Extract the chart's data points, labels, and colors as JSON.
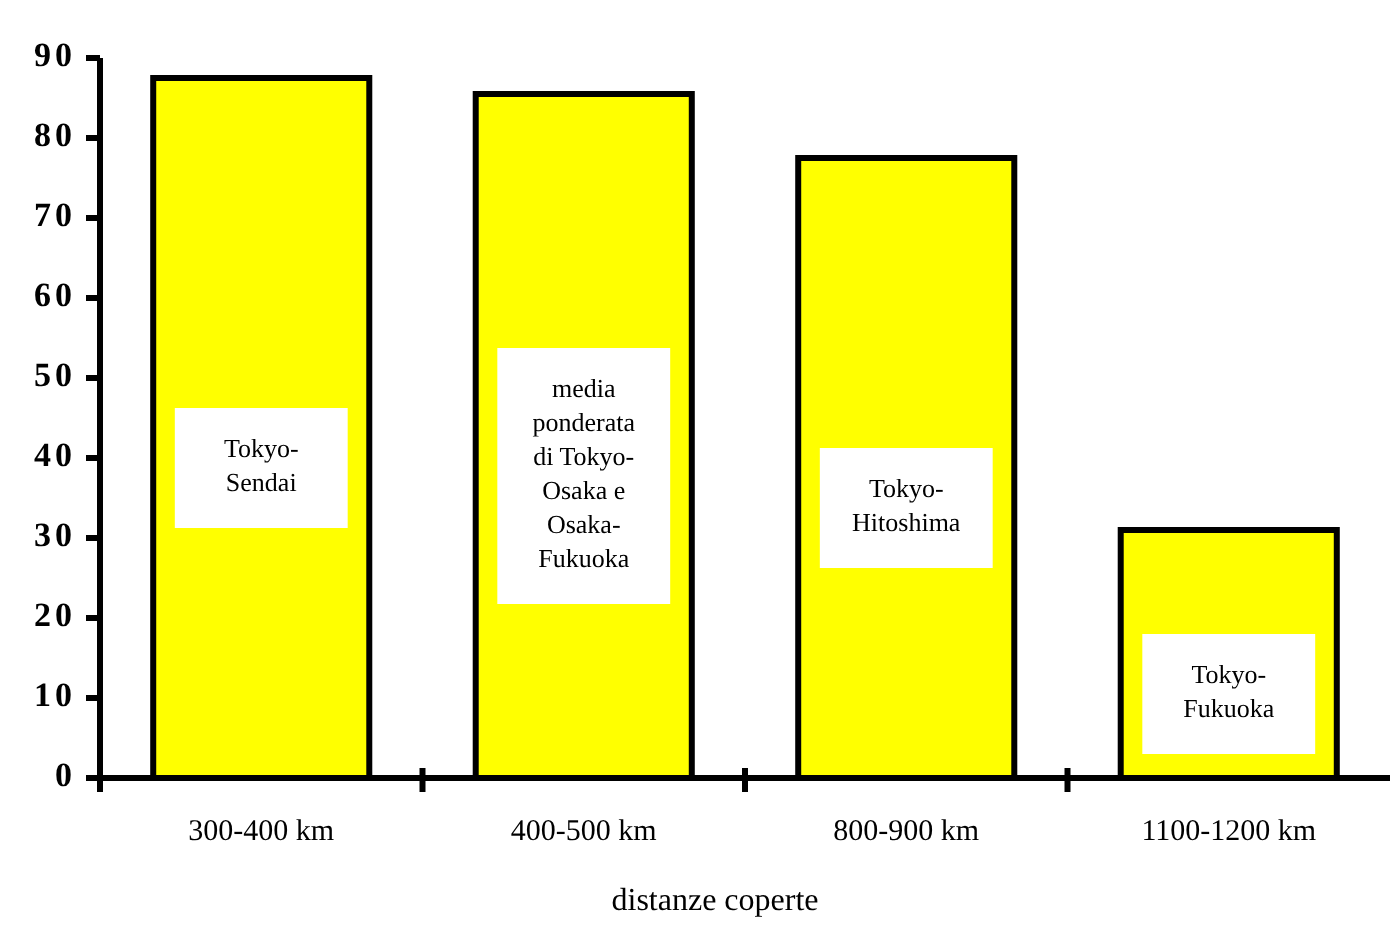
{
  "chart_data": {
    "type": "bar",
    "xlabel": "distanze coperte",
    "categories": [
      "300-400 km",
      "400-500 km",
      "800-900 km",
      "1100-1200 km"
    ],
    "values": [
      87.5,
      85.5,
      77.5,
      31
    ],
    "color": "#ffff00",
    "ylim": [
      0,
      90
    ],
    "yticks": [
      0,
      10,
      20,
      30,
      40,
      50,
      60,
      70,
      80,
      90
    ],
    "grid": false,
    "annotations": [
      "Tokyo-Sendai",
      "media ponderata di Tokyo-Osaka e Osaka-Fukuoka",
      "Tokyo-Hitoshima",
      "Tokyo-Fukuoka"
    ]
  }
}
